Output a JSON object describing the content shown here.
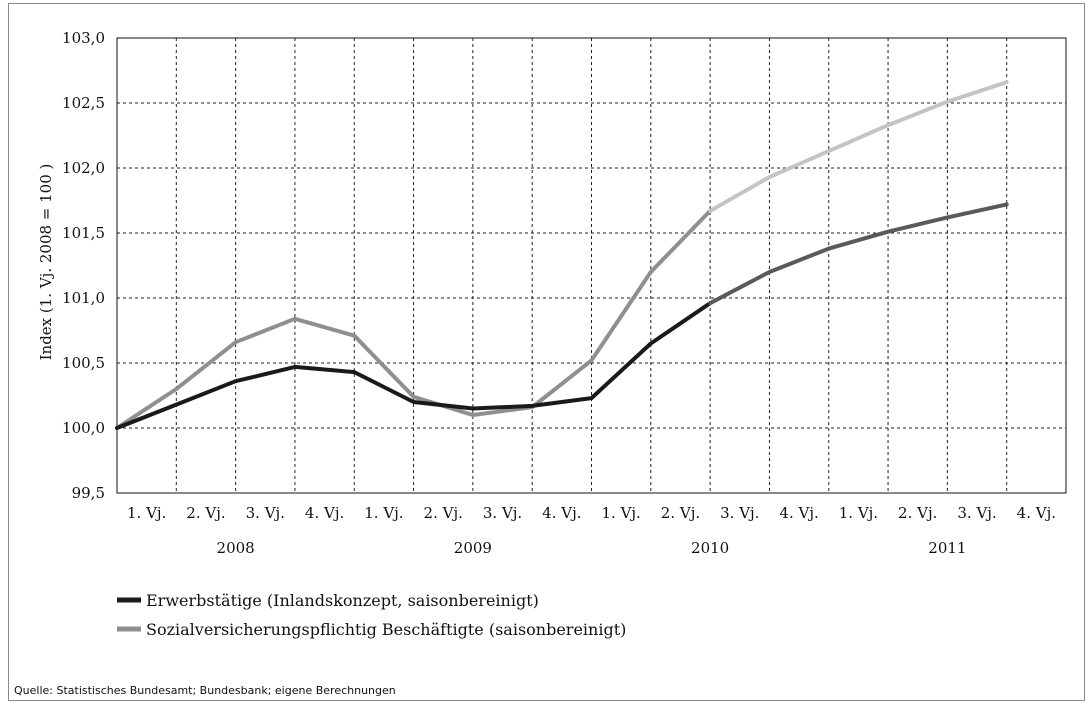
{
  "chart_data": {
    "type": "line",
    "title": "",
    "ylabel": "Index (1. Vj. 2008 = 100 )",
    "xlabel": "",
    "ylim": [
      99.5,
      103.0
    ],
    "yticks": [
      "103,0",
      "102,5",
      "102,0",
      "101,5",
      "101,0",
      "100,5",
      "100,0",
      "99,5"
    ],
    "ytick_values": [
      103.0,
      102.5,
      102.0,
      101.5,
      101.0,
      100.5,
      100.0,
      99.5
    ],
    "categories": [
      "1. Vj.",
      "2. Vj.",
      "3. Vj.",
      "4. Vj.",
      "1. Vj.",
      "2. Vj.",
      "3. Vj.",
      "4. Vj.",
      "1. Vj.",
      "2. Vj.",
      "3. Vj.",
      "4. Vj.",
      "1. Vj.",
      "2. Vj.",
      "3. Vj.",
      "4. Vj."
    ],
    "years": [
      "2008",
      "2009",
      "2010",
      "2011"
    ],
    "grid": true,
    "forecast_from_index": 10,
    "series": [
      {
        "name": "Erwerbstätige (Inlandskonzept, saisonbereinigt)",
        "color": "#1a1a1a",
        "forecast_color": "#5a5a5a",
        "values": [
          100.0,
          100.18,
          100.36,
          100.47,
          100.43,
          100.2,
          100.15,
          100.17,
          100.23,
          100.65,
          100.96,
          101.2,
          101.38,
          101.51,
          101.62,
          101.72
        ]
      },
      {
        "name": "Sozialversicherungspflichtig Beschäftigte (saisonbereinigt)",
        "color": "#8f8f8f",
        "forecast_color": "#c4c4c4",
        "values": [
          100.0,
          100.3,
          100.66,
          100.84,
          100.71,
          100.24,
          100.1,
          100.16,
          100.52,
          101.2,
          101.67,
          101.93,
          102.13,
          102.33,
          102.51,
          102.66
        ]
      }
    ]
  },
  "source": "Quelle: Statistisches Bundesamt; Bundesbank; eigene Berechnungen"
}
